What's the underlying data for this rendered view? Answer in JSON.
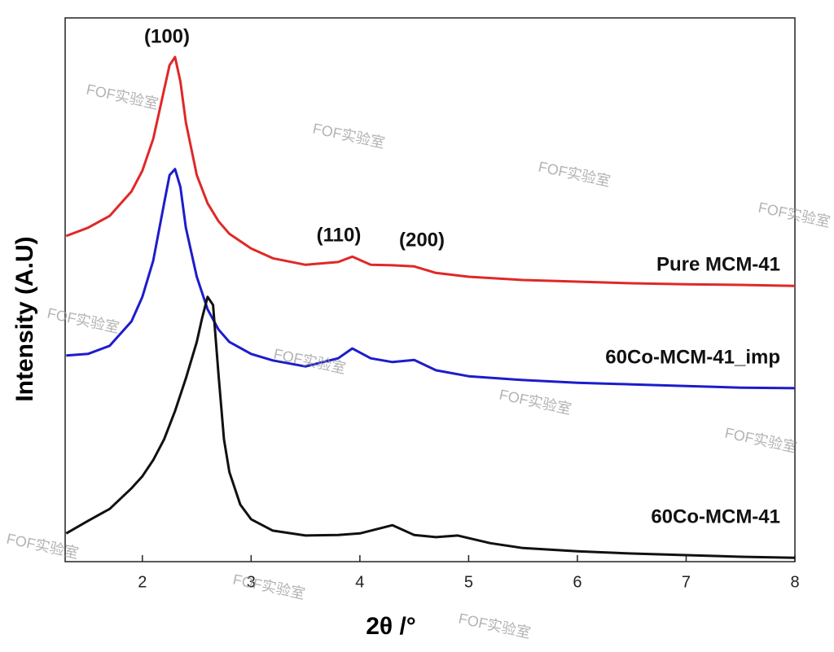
{
  "chart_data": {
    "type": "line",
    "xlabel": "2θ /°",
    "ylabel": "Intensity (A.U)",
    "xlim": [
      1.29,
      8
    ],
    "xticks": [
      2,
      3,
      4,
      5,
      6,
      7,
      8
    ],
    "ylim": [
      0,
      100
    ],
    "annotations": [
      "(100)",
      "(110)",
      "(200)"
    ],
    "watermark": "FOF实验室",
    "series": [
      {
        "name": "Pure MCM-41",
        "color": "#e02828",
        "x": [
          1.3,
          1.5,
          1.7,
          1.9,
          2.0,
          2.1,
          2.2,
          2.25,
          2.3,
          2.35,
          2.4,
          2.5,
          2.6,
          2.7,
          2.8,
          3.0,
          3.2,
          3.5,
          3.8,
          3.93,
          4.1,
          4.3,
          4.5,
          4.7,
          5.0,
          5.5,
          6,
          6.5,
          7,
          7.5,
          8
        ],
        "values": [
          59.9,
          61.4,
          63.6,
          68.1,
          71.9,
          77.8,
          86.8,
          91.3,
          92.8,
          88.3,
          80.8,
          71.1,
          65.9,
          62.6,
          60.3,
          57.6,
          55.8,
          54.6,
          55.1,
          56.1,
          54.6,
          54.5,
          54.3,
          53.1,
          52.4,
          51.8,
          51.5,
          51.2,
          51.0,
          50.9,
          50.7
        ]
      },
      {
        "name": "60Co-MCM-41_imp",
        "color": "#1c1ccc",
        "x": [
          1.3,
          1.5,
          1.7,
          1.9,
          2.0,
          2.1,
          2.2,
          2.25,
          2.3,
          2.35,
          2.4,
          2.5,
          2.6,
          2.7,
          2.8,
          3.0,
          3.2,
          3.5,
          3.8,
          3.93,
          4.1,
          4.3,
          4.5,
          4.7,
          5.0,
          5.5,
          6,
          6.5,
          7,
          7.5,
          8
        ],
        "values": [
          37.9,
          38.2,
          39.7,
          44.2,
          48.7,
          55.4,
          65.9,
          71.1,
          72.2,
          68.9,
          61.4,
          52.4,
          46.4,
          42.7,
          40.4,
          38.2,
          37.0,
          35.9,
          37.4,
          39.2,
          37.4,
          36.7,
          37.1,
          35.2,
          34.1,
          33.4,
          32.9,
          32.6,
          32.3,
          32.0,
          31.9
        ]
      },
      {
        "name": "60Co-MCM-41",
        "color": "#111111",
        "x": [
          1.3,
          1.5,
          1.7,
          1.9,
          2.0,
          2.1,
          2.2,
          2.3,
          2.4,
          2.5,
          2.55,
          2.6,
          2.65,
          2.7,
          2.75,
          2.8,
          2.9,
          3.0,
          3.2,
          3.5,
          3.8,
          4.0,
          4.3,
          4.5,
          4.7,
          4.9,
          5.2,
          5.5,
          6,
          6.5,
          7,
          7.5,
          8
        ],
        "values": [
          5.2,
          7.5,
          9.7,
          13.5,
          15.7,
          18.7,
          22.5,
          27.7,
          33.7,
          40.4,
          44.9,
          48.7,
          47.2,
          34.4,
          22.5,
          16.5,
          10.5,
          7.8,
          5.7,
          4.8,
          4.9,
          5.2,
          6.7,
          4.9,
          4.5,
          4.8,
          3.4,
          2.5,
          1.9,
          1.5,
          1.2,
          0.9,
          0.7
        ]
      }
    ]
  }
}
